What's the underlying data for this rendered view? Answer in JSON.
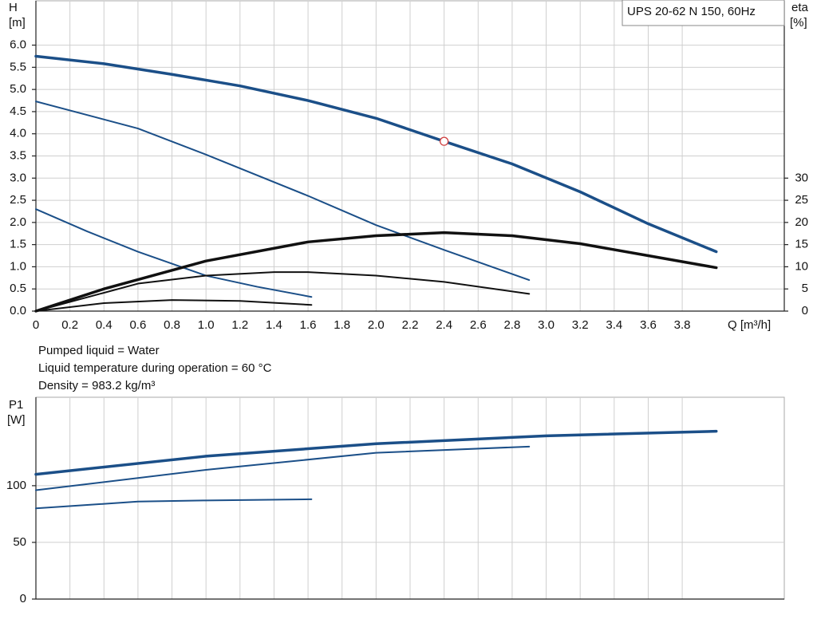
{
  "chart_data": [
    {
      "type": "line",
      "title": "UPS 20-62 N 150, 60Hz",
      "y_label": [
        "H",
        "[m]"
      ],
      "y2_label": [
        "eta",
        "[%]"
      ],
      "x_label": "Q [m³/h]",
      "xlim": [
        0,
        4.4
      ],
      "ylim": [
        0,
        7
      ],
      "y2lim": [
        0,
        70
      ],
      "xticks": [
        0,
        0.2,
        0.4,
        0.6,
        0.8,
        {
          "value": 1,
          "label": "1.0"
        },
        1.2,
        1.4,
        1.6,
        1.8,
        {
          "value": 2,
          "label": "2.0"
        },
        2.2,
        2.4,
        2.6,
        2.8,
        {
          "value": 3,
          "label": "3.0"
        },
        3.2,
        3.4,
        3.6,
        3.8
      ],
      "yticks": [
        {
          "value": 0,
          "label": "0.0"
        },
        0.5,
        {
          "value": 1,
          "label": "1.0"
        },
        1.5,
        {
          "value": 2,
          "label": "2.0"
        },
        2.5,
        {
          "value": 3,
          "label": "3.0"
        },
        3.5,
        {
          "value": 4,
          "label": "4.0"
        },
        4.5,
        {
          "value": 5,
          "label": "5.0"
        },
        5.5,
        {
          "value": 6,
          "label": "6.0"
        }
      ],
      "y2ticks": [
        0,
        5,
        10,
        15,
        20,
        25,
        30
      ],
      "grid": true,
      "series": [
        {
          "color": "#1b4f88",
          "width": 3.5,
          "x": [
            0,
            0.4,
            0.8,
            1.2,
            1.6,
            2.0,
            2.4,
            2.8,
            3.2,
            3.6,
            4.0
          ],
          "values": [
            5.75,
            5.58,
            5.34,
            5.08,
            4.75,
            4.35,
            3.83,
            3.32,
            2.69,
            1.97,
            1.34
          ]
        },
        {
          "color": "#1b4f88",
          "width": 2,
          "x": [
            0,
            0.6,
            1.0,
            1.6,
            2.0,
            2.4,
            2.9
          ],
          "values": [
            4.73,
            4.12,
            3.53,
            2.6,
            1.94,
            1.38,
            0.7
          ]
        },
        {
          "color": "#1b4f88",
          "width": 2,
          "x": [
            0,
            0.3,
            0.6,
            1.0,
            1.3,
            1.62
          ],
          "values": [
            2.3,
            1.8,
            1.34,
            0.8,
            0.55,
            0.32
          ]
        },
        {
          "color": "#111111",
          "width": 3.5,
          "axis": "y2",
          "x": [
            0,
            0.4,
            1.0,
            1.6,
            2.0,
            2.4,
            2.8,
            3.2,
            3.6,
            4.0
          ],
          "values": [
            0,
            5,
            11.3,
            15.6,
            17,
            17.7,
            17,
            15.2,
            12.5,
            9.8
          ]
        },
        {
          "color": "#111111",
          "width": 2,
          "axis": "y2",
          "x": [
            0,
            0.6,
            1.0,
            1.4,
            1.6,
            2.0,
            2.4,
            2.9
          ],
          "values": [
            0,
            6.2,
            8,
            8.8,
            8.8,
            8,
            6.6,
            3.9
          ]
        },
        {
          "color": "#111111",
          "width": 2,
          "axis": "y2",
          "x": [
            0,
            0.4,
            0.8,
            1.2,
            1.62
          ],
          "values": [
            0,
            1.8,
            2.5,
            2.3,
            1.4
          ]
        }
      ],
      "operating_point": {
        "x": 2.4,
        "y": 3.83,
        "color": "#d04040"
      }
    },
    {
      "type": "line",
      "y_label": [
        "P1",
        "[W]"
      ],
      "xlim": [
        0,
        4.4
      ],
      "ylim": [
        0,
        178
      ],
      "yticks": [
        0,
        50,
        100
      ],
      "grid": true,
      "series": [
        {
          "color": "#1b4f88",
          "width": 3.5,
          "x": [
            0,
            1.0,
            2.0,
            3.0,
            4.0
          ],
          "values": [
            110,
            126,
            137,
            144,
            148
          ]
        },
        {
          "color": "#1b4f88",
          "width": 2,
          "x": [
            0,
            1.0,
            2.0,
            2.9
          ],
          "values": [
            96,
            114,
            129,
            134.5
          ]
        },
        {
          "color": "#1b4f88",
          "width": 2,
          "x": [
            0,
            0.6,
            1.0,
            1.62
          ],
          "values": [
            80,
            86,
            87,
            88
          ]
        }
      ]
    }
  ],
  "info": [
    "Pumped liquid = Water",
    "Liquid temperature during operation = 60 °C",
    "Density = 983.2 kg/m³"
  ]
}
